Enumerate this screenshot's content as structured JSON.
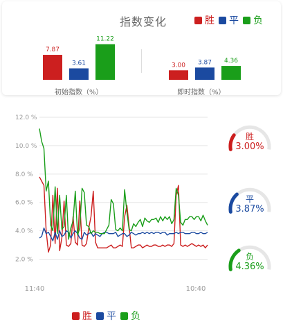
{
  "header": {
    "title": "指数变化"
  },
  "legend": [
    {
      "label": "胜",
      "color": "#cc1f1f"
    },
    {
      "label": "平",
      "color": "#1b4aa0"
    },
    {
      "label": "负",
      "color": "#1a9e1a"
    }
  ],
  "colors": {
    "win": "#cc1f1f",
    "draw": "#1b4aa0",
    "loss": "#1a9e1a",
    "grid": "#e5e5e5",
    "gauge_track": "#e6e6e6"
  },
  "initial": {
    "label": "初始指数（%）",
    "values": [
      "7.87",
      "3.61",
      "11.22"
    ]
  },
  "current": {
    "label": "即时指数（%）",
    "values": [
      "3.00",
      "3.87",
      "4.36"
    ]
  },
  "gauges": [
    {
      "label": "胜",
      "value": "3.00%",
      "pct": 3.0,
      "color": "#cc1f1f"
    },
    {
      "label": "平",
      "value": "3.87%",
      "pct": 3.87,
      "color": "#1b4aa0"
    },
    {
      "label": "负",
      "value": "4.36%",
      "pct": 4.36,
      "color": "#1a9e1a"
    }
  ],
  "chart_data": [
    {
      "type": "bar",
      "xlabel": "初始指数（%）",
      "categories": [
        "胜",
        "平",
        "负"
      ],
      "values": [
        7.87,
        3.61,
        11.22
      ],
      "colors": [
        "#cc1f1f",
        "#1b4aa0",
        "#1a9e1a"
      ]
    },
    {
      "type": "bar",
      "xlabel": "即时指数（%）",
      "categories": [
        "胜",
        "平",
        "负"
      ],
      "values": [
        3.0,
        3.87,
        4.36
      ],
      "colors": [
        "#cc1f1f",
        "#1b4aa0",
        "#1a9e1a"
      ]
    },
    {
      "type": "line",
      "ylim": [
        1.0,
        12.0
      ],
      "yticks": [
        "12.0 %",
        "10.0 %",
        "8.0 %",
        "6.0 %",
        "4.0 %",
        "2.0 %"
      ],
      "ytick_values": [
        12,
        10,
        8,
        6,
        4,
        2
      ],
      "xticks": [
        "11:40",
        "10:40"
      ],
      "grid": true,
      "legend": "bottom",
      "series": [
        {
          "name": "胜",
          "color": "#cc1f1f",
          "values": [
            7.8,
            7.5,
            7.2,
            4.0,
            2.5,
            3.0,
            6.5,
            3.1,
            7.0,
            2.6,
            3.5,
            6.1,
            3.0,
            2.9,
            3.1,
            5.0,
            3.2,
            3.0,
            6.1,
            3.0,
            2.9,
            3.1,
            4.2,
            5.0,
            6.8,
            3.2,
            2.8,
            2.8,
            2.8,
            2.8,
            2.8,
            2.9,
            3.0,
            2.8,
            2.8,
            2.9,
            3.0,
            2.9,
            5.0,
            5.8,
            4.3,
            2.8,
            2.8,
            2.9,
            3.0,
            3.0,
            2.8,
            2.9,
            3.0,
            2.9,
            2.9,
            3.0,
            3.0,
            2.9,
            2.9,
            3.0,
            2.9,
            3.0,
            3.0,
            2.9,
            3.1,
            6.5,
            7.2,
            3.0,
            2.9,
            3.0,
            2.9,
            3.0,
            3.1,
            3.0,
            2.9,
            3.0,
            2.9,
            3.0,
            2.8,
            3.0
          ]
        },
        {
          "name": "平",
          "color": "#1b4aa0",
          "values": [
            3.5,
            3.6,
            4.2,
            3.8,
            3.9,
            3.6,
            3.3,
            3.9,
            3.4,
            4.0,
            3.6,
            3.7,
            4.0,
            3.9,
            3.5,
            3.8,
            4.0,
            3.8,
            3.5,
            3.4,
            3.9,
            3.7,
            3.8,
            3.9,
            3.6,
            3.8,
            3.7,
            3.6,
            3.8,
            3.9,
            3.9,
            3.8,
            3.8,
            3.8,
            3.9,
            3.6,
            3.7,
            3.8,
            3.8,
            3.6,
            3.7,
            3.9,
            3.8,
            3.7,
            3.8,
            3.8,
            3.9,
            3.8,
            3.9,
            3.8,
            3.9,
            3.8,
            3.9,
            3.9,
            3.8,
            3.9,
            3.9,
            3.7,
            3.8,
            3.8,
            3.8,
            3.9,
            3.8,
            3.9,
            3.9,
            3.8,
            3.8,
            3.8,
            3.9,
            3.9,
            3.8,
            3.8,
            3.9,
            3.8,
            3.8,
            3.9
          ]
        },
        {
          "name": "负",
          "color": "#1a9e1a",
          "values": [
            11.2,
            10.3,
            9.8,
            6.8,
            7.5,
            4.4,
            4.0,
            7.1,
            3.8,
            6.5,
            4.1,
            4.3,
            6.5,
            3.4,
            4.2,
            4.7,
            6.8,
            3.7,
            4.2,
            7.0,
            6.7,
            4.4,
            4.3,
            3.8,
            4.0,
            3.9,
            3.9,
            3.8,
            3.8,
            3.8,
            4.1,
            4.4,
            6.2,
            5.9,
            4.1,
            4.0,
            4.2,
            4.0,
            6.9,
            5.3,
            4.1,
            4.0,
            4.5,
            4.3,
            4.6,
            4.8,
            4.3,
            4.9,
            4.7,
            4.6,
            4.8,
            4.8,
            4.9,
            4.6,
            5.0,
            4.7,
            5.0,
            4.8,
            5.0,
            4.5,
            4.8,
            7.0,
            6.5,
            4.6,
            4.4,
            4.8,
            4.8,
            5.0,
            5.0,
            4.8,
            5.0,
            5.0,
            4.7,
            5.1,
            4.7,
            4.4
          ]
        }
      ]
    }
  ]
}
